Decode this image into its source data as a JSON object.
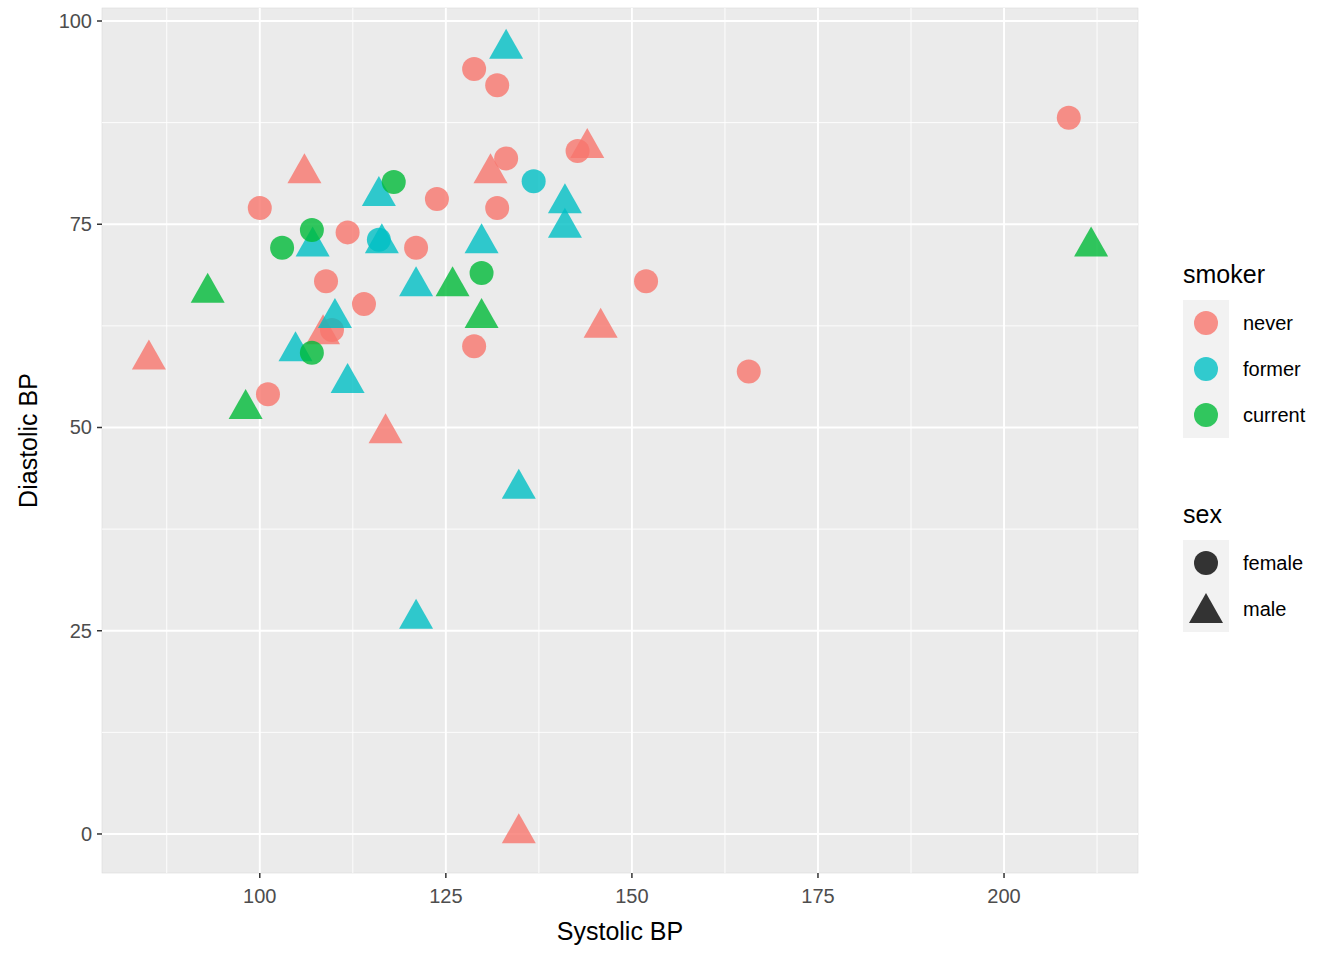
{
  "chart_data": {
    "type": "scatter",
    "x_label": "Systolic BP",
    "y_label": "Diastolic BP",
    "xlim": [
      78.8,
      218
    ],
    "ylim": [
      -4.8,
      101.6
    ],
    "xticks": [
      100,
      125,
      150,
      175,
      200
    ],
    "yticks": [
      0,
      25,
      50,
      75,
      100
    ],
    "grid": true,
    "legend": "right",
    "legend_title": "smoker",
    "series": [
      {
        "name": "never",
        "color": "#F8766D",
        "x": [
          128.8,
          131.9,
          133.1,
          142.7,
          100,
          123.8,
          131.9,
          111.8,
          121.0,
          108.9,
          114.0,
          109.7,
          128.8,
          101.1,
          151.9,
          165.7,
          208.7,
          106.0,
          144.0,
          131.0,
          108.5,
          85.1,
          116.9,
          145.8,
          134.8
        ],
        "values": [
          94.1,
          92.1,
          83.1,
          84.0,
          77.0,
          78.1,
          77.0,
          74.0,
          72.1,
          68.0,
          65.2,
          62.0,
          60.0,
          54.1,
          68.0,
          56.9,
          88.1,
          81.4,
          84.5,
          81.4,
          61.6,
          58.5,
          49.4,
          62.4,
          0.2
        ],
        "sex": [
          "female",
          "female",
          "female",
          "female",
          "female",
          "female",
          "female",
          "female",
          "female",
          "female",
          "female",
          "female",
          "female",
          "female",
          "female",
          "female",
          "female",
          "male",
          "male",
          "male",
          "male",
          "male",
          "male",
          "male",
          "male"
        ]
      },
      {
        "name": "former",
        "color": "#00BFC4",
        "x": [
          136.8,
          116.0,
          133.1,
          116.0,
          116.4,
          107.1,
          141.0,
          141.0,
          129.8,
          121.0,
          110.1,
          104.8,
          111.8,
          134.8,
          121.0
        ],
        "values": [
          80.3,
          73.1,
          96.7,
          78.6,
          72.8,
          72.4,
          77.7,
          74.7,
          72.8,
          67.5,
          63.6,
          59.5,
          55.6,
          42.6,
          26.6
        ],
        "sex": [
          "female",
          "female",
          "male",
          "male",
          "male",
          "male",
          "male",
          "male",
          "male",
          "male",
          "male",
          "male",
          "male",
          "male",
          "male"
        ]
      },
      {
        "name": "current",
        "color": "#00BA38",
        "x": [
          118.0,
          107.0,
          103.0,
          129.8,
          107.0,
          93.0,
          98.1,
          125.9,
          129.8,
          211.7
        ],
        "values": [
          80.2,
          74.3,
          72.1,
          69.0,
          59.2,
          66.7,
          52.4,
          67.5,
          63.6,
          72.4
        ],
        "sex": [
          "female",
          "female",
          "female",
          "female",
          "female",
          "male",
          "male",
          "male",
          "male",
          "male"
        ]
      }
    ],
    "shape_legend": {
      "title": "sex",
      "entries": [
        {
          "label": "female",
          "marker": "circle"
        },
        {
          "label": "male",
          "marker": "triangle"
        }
      ]
    }
  }
}
